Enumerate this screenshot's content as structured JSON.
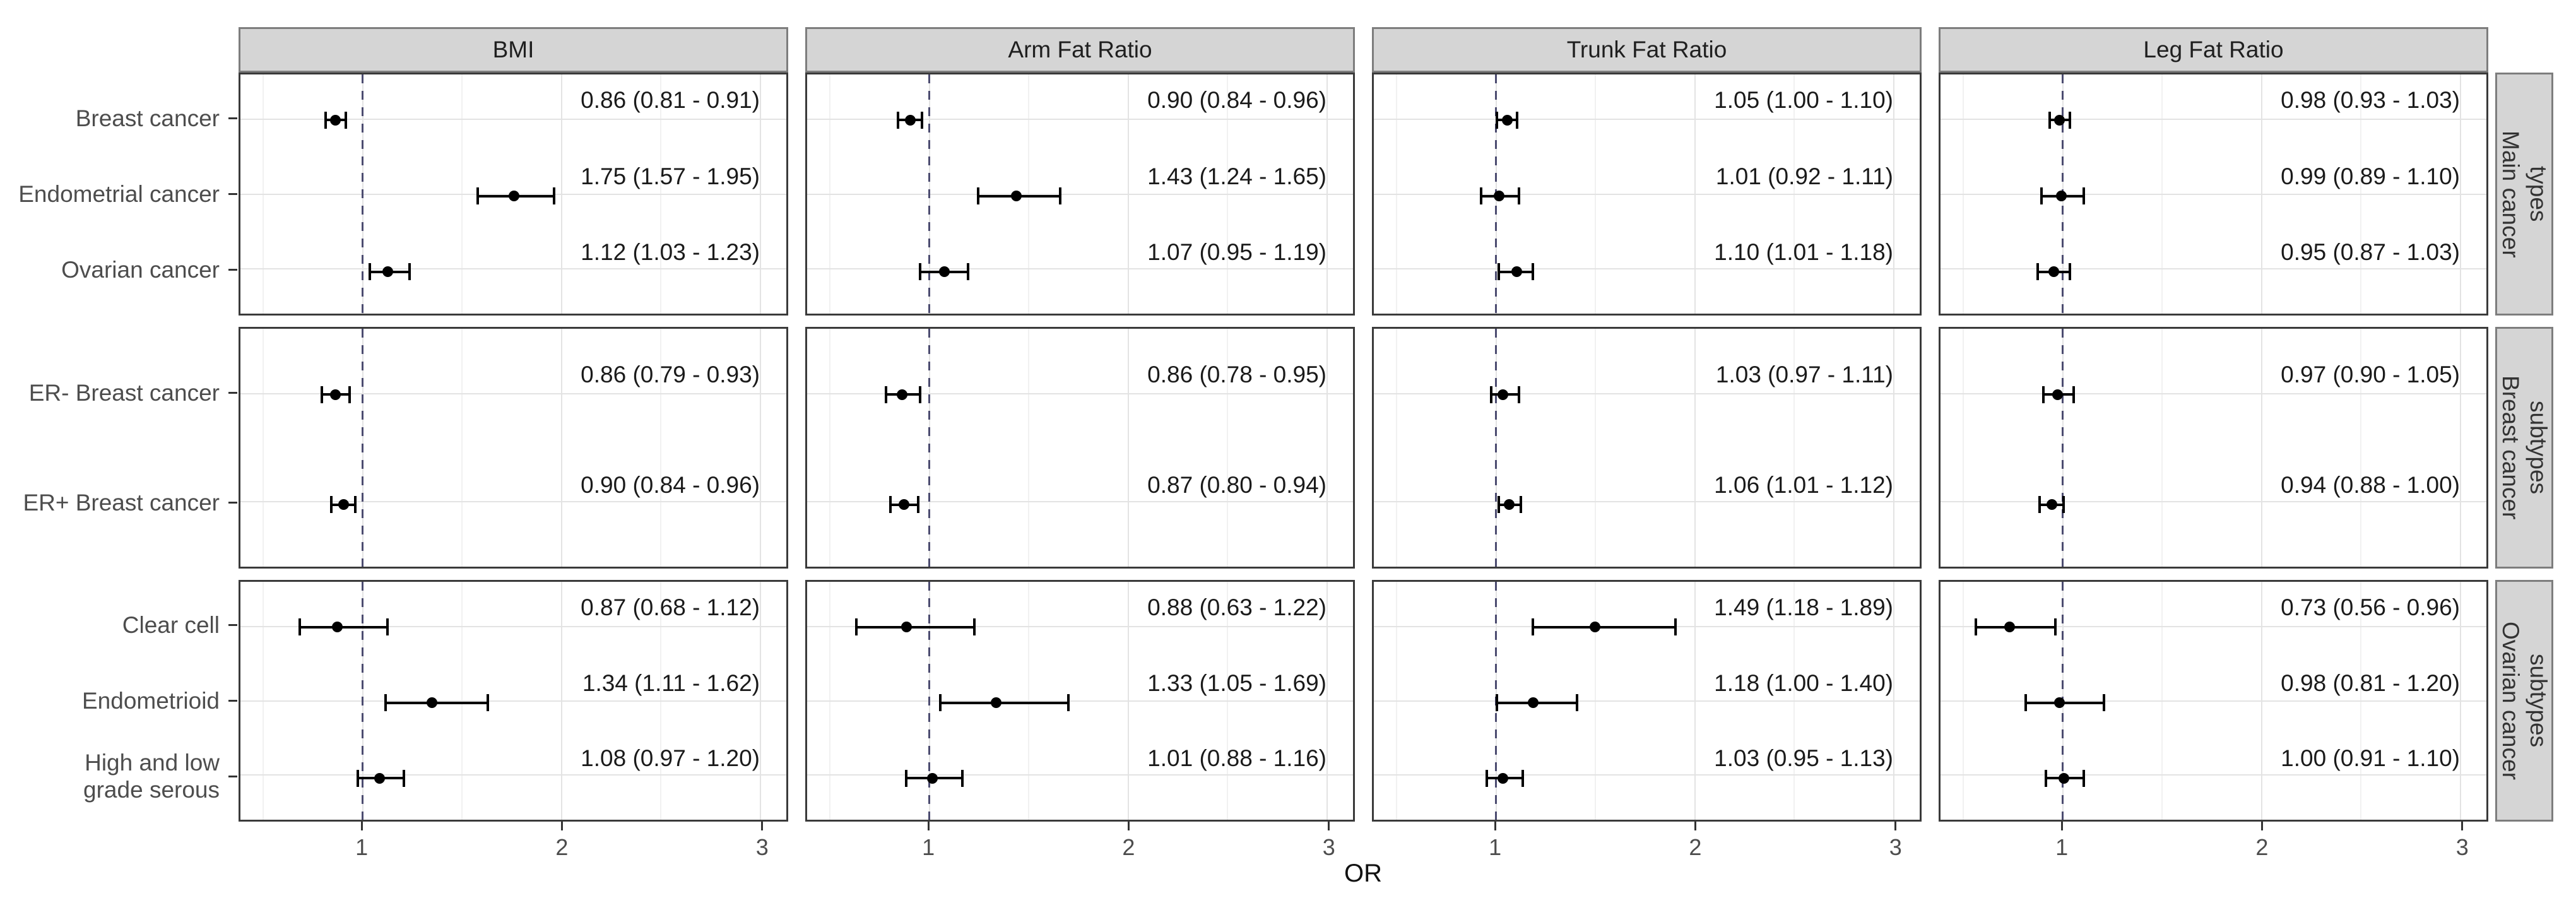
{
  "chart_data": {
    "type": "forest",
    "title": "",
    "xlabel": "OR",
    "x_ticks": [
      1,
      2,
      3
    ],
    "x_minor_ticks": [
      0.5,
      1.5,
      2.5
    ],
    "x_domain": [
      0.385,
      3.13
    ],
    "reference_line": 1.0,
    "grid": "on",
    "facet_columns": [
      "BMI",
      "Arm Fat Ratio",
      "Trunk Fat Ratio",
      "Leg Fat Ratio"
    ],
    "facet_row_groups": [
      {
        "strip": "Main cancer\ntypes",
        "categories": [
          "Breast cancer",
          "Endometrial cancer",
          "Ovarian cancer"
        ]
      },
      {
        "strip": "Breast cancer\nsubtypes",
        "categories": [
          "ER- Breast cancer",
          "ER+ Breast cancer"
        ]
      },
      {
        "strip": "Ovarian cancer\nsubtypes",
        "categories": [
          "Clear cell",
          "Endometrioid",
          "High and low\ngrade serous"
        ]
      }
    ],
    "cells": [
      {
        "column": "BMI",
        "group": 0,
        "rows": [
          {
            "label": "Breast cancer",
            "or": 0.86,
            "ci_low": 0.81,
            "ci_high": 0.91,
            "text": "0.86 (0.81 - 0.91)"
          },
          {
            "label": "Endometrial cancer",
            "or": 1.75,
            "ci_low": 1.57,
            "ci_high": 1.95,
            "text": "1.75 (1.57 - 1.95)"
          },
          {
            "label": "Ovarian cancer",
            "or": 1.12,
            "ci_low": 1.03,
            "ci_high": 1.23,
            "text": "1.12 (1.03 - 1.23)"
          }
        ]
      },
      {
        "column": "Arm Fat Ratio",
        "group": 0,
        "rows": [
          {
            "label": "Breast cancer",
            "or": 0.9,
            "ci_low": 0.84,
            "ci_high": 0.96,
            "text": "0.90 (0.84 - 0.96)"
          },
          {
            "label": "Endometrial cancer",
            "or": 1.43,
            "ci_low": 1.24,
            "ci_high": 1.65,
            "text": "1.43 (1.24 - 1.65)"
          },
          {
            "label": "Ovarian cancer",
            "or": 1.07,
            "ci_low": 0.95,
            "ci_high": 1.19,
            "text": "1.07 (0.95 - 1.19)"
          }
        ]
      },
      {
        "column": "Trunk Fat Ratio",
        "group": 0,
        "rows": [
          {
            "label": "Breast cancer",
            "or": 1.05,
            "ci_low": 1.0,
            "ci_high": 1.1,
            "text": "1.05 (1.00 - 1.10)"
          },
          {
            "label": "Endometrial cancer",
            "or": 1.01,
            "ci_low": 0.92,
            "ci_high": 1.11,
            "text": "1.01 (0.92 - 1.11)"
          },
          {
            "label": "Ovarian cancer",
            "or": 1.1,
            "ci_low": 1.01,
            "ci_high": 1.18,
            "text": "1.10 (1.01 - 1.18)"
          }
        ]
      },
      {
        "column": "Leg Fat Ratio",
        "group": 0,
        "rows": [
          {
            "label": "Breast cancer",
            "or": 0.98,
            "ci_low": 0.93,
            "ci_high": 1.03,
            "text": "0.98 (0.93 - 1.03)"
          },
          {
            "label": "Endometrial cancer",
            "or": 0.99,
            "ci_low": 0.89,
            "ci_high": 1.1,
            "text": "0.99 (0.89 - 1.10)"
          },
          {
            "label": "Ovarian cancer",
            "or": 0.95,
            "ci_low": 0.87,
            "ci_high": 1.03,
            "text": "0.95 (0.87 - 1.03)"
          }
        ]
      },
      {
        "column": "BMI",
        "group": 1,
        "rows": [
          {
            "label": "ER- Breast cancer",
            "or": 0.86,
            "ci_low": 0.79,
            "ci_high": 0.93,
            "text": "0.86 (0.79 - 0.93)"
          },
          {
            "label": "ER+ Breast cancer",
            "or": 0.9,
            "ci_low": 0.84,
            "ci_high": 0.96,
            "text": "0.90 (0.84 - 0.96)"
          }
        ]
      },
      {
        "column": "Arm Fat Ratio",
        "group": 1,
        "rows": [
          {
            "label": "ER- Breast cancer",
            "or": 0.86,
            "ci_low": 0.78,
            "ci_high": 0.95,
            "text": "0.86 (0.78 - 0.95)"
          },
          {
            "label": "ER+ Breast cancer",
            "or": 0.87,
            "ci_low": 0.8,
            "ci_high": 0.94,
            "text": "0.87 (0.80 - 0.94)"
          }
        ]
      },
      {
        "column": "Trunk Fat Ratio",
        "group": 1,
        "rows": [
          {
            "label": "ER- Breast cancer",
            "or": 1.03,
            "ci_low": 0.97,
            "ci_high": 1.11,
            "text": "1.03 (0.97 - 1.11)"
          },
          {
            "label": "ER+ Breast cancer",
            "or": 1.06,
            "ci_low": 1.01,
            "ci_high": 1.12,
            "text": "1.06 (1.01 - 1.12)"
          }
        ]
      },
      {
        "column": "Leg Fat Ratio",
        "group": 1,
        "rows": [
          {
            "label": "ER- Breast cancer",
            "or": 0.97,
            "ci_low": 0.9,
            "ci_high": 1.05,
            "text": "0.97 (0.90 - 1.05)"
          },
          {
            "label": "ER+ Breast cancer",
            "or": 0.94,
            "ci_low": 0.88,
            "ci_high": 1.0,
            "text": "0.94 (0.88 - 1.00)"
          }
        ]
      },
      {
        "column": "BMI",
        "group": 2,
        "rows": [
          {
            "label": "Clear cell",
            "or": 0.87,
            "ci_low": 0.68,
            "ci_high": 1.12,
            "text": "0.87 (0.68 - 1.12)"
          },
          {
            "label": "Endometrioid",
            "or": 1.34,
            "ci_low": 1.11,
            "ci_high": 1.62,
            "text": "1.34 (1.11 - 1.62)"
          },
          {
            "label": "High and low grade serous",
            "or": 1.08,
            "ci_low": 0.97,
            "ci_high": 1.2,
            "text": "1.08 (0.97 - 1.20)"
          }
        ]
      },
      {
        "column": "Arm Fat Ratio",
        "group": 2,
        "rows": [
          {
            "label": "Clear cell",
            "or": 0.88,
            "ci_low": 0.63,
            "ci_high": 1.22,
            "text": "0.88 (0.63 - 1.22)"
          },
          {
            "label": "Endometrioid",
            "or": 1.33,
            "ci_low": 1.05,
            "ci_high": 1.69,
            "text": "1.33 (1.05 - 1.69)"
          },
          {
            "label": "High and low grade serous",
            "or": 1.01,
            "ci_low": 0.88,
            "ci_high": 1.16,
            "text": "1.01 (0.88 - 1.16)"
          }
        ]
      },
      {
        "column": "Trunk Fat Ratio",
        "group": 2,
        "rows": [
          {
            "label": "Clear cell",
            "or": 1.49,
            "ci_low": 1.18,
            "ci_high": 1.89,
            "text": "1.49 (1.18 - 1.89)"
          },
          {
            "label": "Endometrioid",
            "or": 1.18,
            "ci_low": 1.0,
            "ci_high": 1.4,
            "text": "1.18 (1.00 - 1.40)"
          },
          {
            "label": "High and low grade serous",
            "or": 1.03,
            "ci_low": 0.95,
            "ci_high": 1.13,
            "text": "1.03 (0.95 - 1.13)"
          }
        ]
      },
      {
        "column": "Leg Fat Ratio",
        "group": 2,
        "rows": [
          {
            "label": "Clear cell",
            "or": 0.73,
            "ci_low": 0.56,
            "ci_high": 0.96,
            "text": "0.73 (0.56 - 0.96)"
          },
          {
            "label": "Endometrioid",
            "or": 0.98,
            "ci_low": 0.81,
            "ci_high": 1.2,
            "text": "0.98 (0.81 - 1.20)"
          },
          {
            "label": "High and low grade serous",
            "or": 1.0,
            "ci_low": 0.91,
            "ci_high": 1.1,
            "text": "1.00 (0.91 - 1.10)"
          }
        ]
      }
    ],
    "colors": {
      "strip_fill": "#d5d5d5",
      "strip_border": "#7d7d7d",
      "panel_border": "#3a3a3a",
      "grid_major": "#e3e3e3",
      "grid_minor": "#f1f1f1",
      "reference_line": "#4c4c70",
      "marker": "#000000",
      "axis_text": "#4d4d4d",
      "value_text": "#1a1a1a"
    }
  }
}
